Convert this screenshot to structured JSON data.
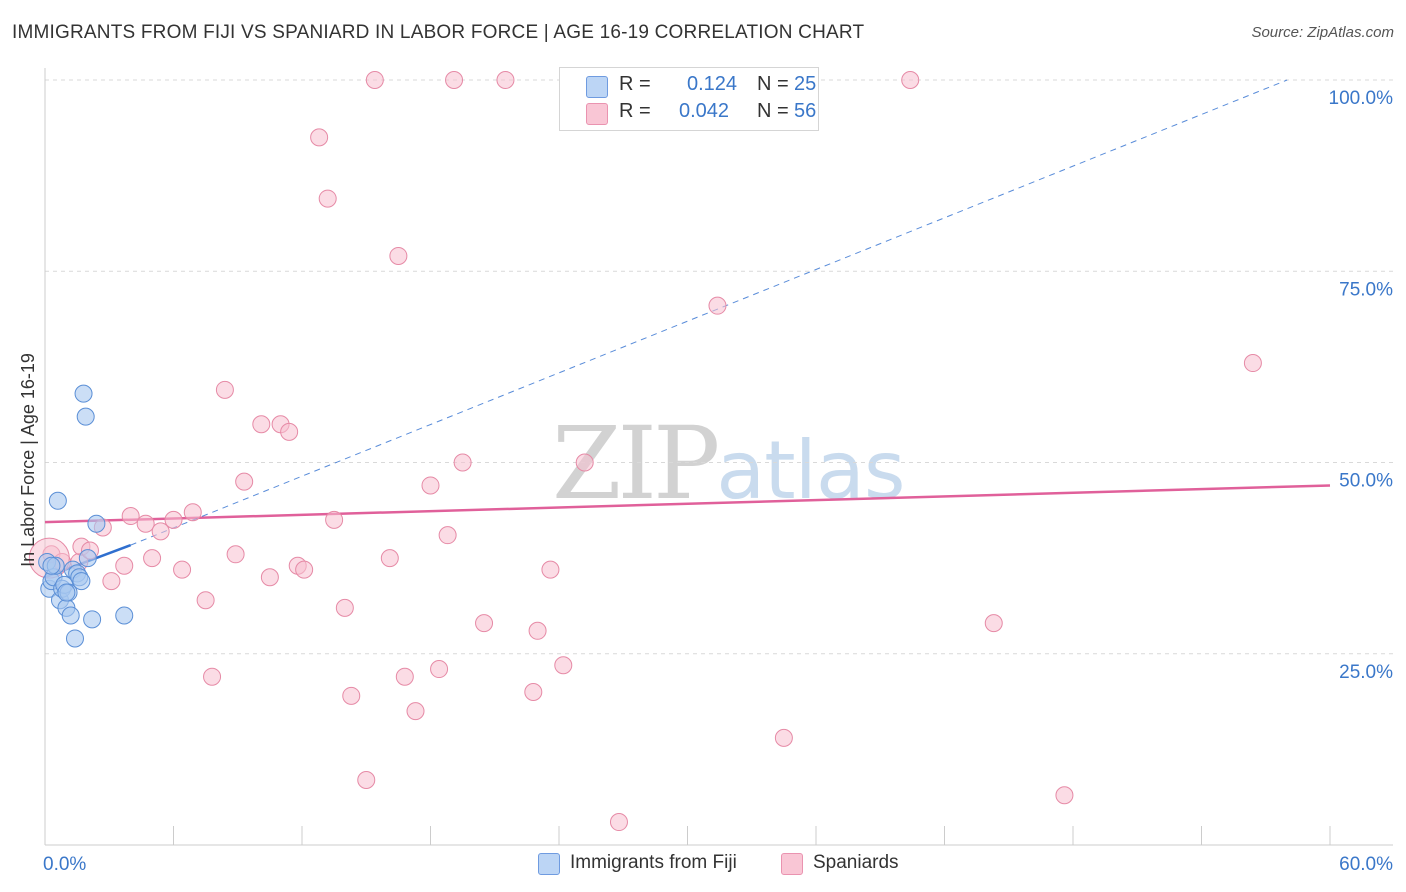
{
  "title": "IMMIGRANTS FROM FIJI VS SPANIARD IN LABOR FORCE | AGE 16-19 CORRELATION CHART",
  "source": "Source: ZipAtlas.com",
  "watermark": {
    "zip": "ZIP",
    "atlas": "atlas"
  },
  "colors": {
    "fiji_fill": "#a9c8f0",
    "fiji_stroke": "#5b8fd6",
    "fiji_line": "#2f6fcf",
    "spaniard_fill": "#f7bfd0",
    "spaniard_stroke": "#e68aa6",
    "spaniard_line": "#e0609a",
    "axis_label": "#3a77c9",
    "grid": "#d9d9d9"
  },
  "legend": {
    "rows": [
      {
        "r_label": "R =",
        "r_value": "0.124",
        "n_label": "N =",
        "n_value": "25"
      },
      {
        "r_label": "R =",
        "r_value": "0.042",
        "n_label": "N =",
        "n_value": "56"
      }
    ]
  },
  "chart_data": {
    "type": "scatter",
    "title": "IMMIGRANTS FROM FIJI VS SPANIARD IN LABOR FORCE | AGE 16-19 CORRELATION CHART",
    "xlabel": "",
    "ylabel": "In Labor Force | Age 16-19",
    "xlim": [
      0,
      60
    ],
    "ylim": [
      0,
      100
    ],
    "x_tick_labels": [
      "0.0%",
      "60.0%"
    ],
    "y_tick_labels": [
      {
        "value": 25,
        "label": "25.0%"
      },
      {
        "value": 50,
        "label": "50.0%"
      },
      {
        "value": 75,
        "label": "75.0%"
      },
      {
        "value": 100,
        "label": "100.0%"
      }
    ],
    "grid": true,
    "legend_position": "top-center",
    "series": [
      {
        "name": "Immigrants from Fiji",
        "r": 0.124,
        "n": 25,
        "points": [
          [
            0.1,
            37
          ],
          [
            0.2,
            33.5
          ],
          [
            0.3,
            34.5
          ],
          [
            0.4,
            35
          ],
          [
            0.5,
            36.5
          ],
          [
            0.6,
            45
          ],
          [
            0.7,
            32
          ],
          [
            0.8,
            33.5
          ],
          [
            0.9,
            34
          ],
          [
            1.0,
            31
          ],
          [
            1.1,
            33
          ],
          [
            1.2,
            30
          ],
          [
            1.3,
            36
          ],
          [
            1.4,
            27
          ],
          [
            1.5,
            35.5
          ],
          [
            1.6,
            35
          ],
          [
            1.7,
            34.5
          ],
          [
            1.8,
            59
          ],
          [
            1.9,
            56
          ],
          [
            2.0,
            37.5
          ],
          [
            2.2,
            29.5
          ],
          [
            2.4,
            42
          ],
          [
            3.7,
            30
          ],
          [
            0.3,
            36.5
          ],
          [
            1.0,
            33
          ]
        ],
        "trend_solid": [
          [
            0,
            35
          ],
          [
            4,
            39.2
          ]
        ],
        "trend_dashed": [
          [
            4,
            39.2
          ],
          [
            58,
            100
          ]
        ]
      },
      {
        "name": "Spaniards",
        "r": 0.042,
        "n": 56,
        "points": [
          [
            0.3,
            38
          ],
          [
            0.8,
            37
          ],
          [
            1.6,
            37
          ],
          [
            1.7,
            39
          ],
          [
            2.1,
            38.5
          ],
          [
            2.7,
            41.5
          ],
          [
            3.1,
            34.5
          ],
          [
            3.7,
            36.5
          ],
          [
            4.0,
            43
          ],
          [
            4.7,
            42
          ],
          [
            5.0,
            37.5
          ],
          [
            5.4,
            41
          ],
          [
            6.0,
            42.5
          ],
          [
            6.4,
            36
          ],
          [
            6.9,
            43.5
          ],
          [
            7.5,
            32
          ],
          [
            7.8,
            22
          ],
          [
            8.4,
            59.5
          ],
          [
            8.9,
            38
          ],
          [
            9.3,
            47.5
          ],
          [
            10.1,
            55
          ],
          [
            10.5,
            35
          ],
          [
            11.0,
            55
          ],
          [
            11.4,
            54
          ],
          [
            11.8,
            36.5
          ],
          [
            12.1,
            36
          ],
          [
            12.8,
            92.5
          ],
          [
            13.2,
            84.5
          ],
          [
            13.5,
            42.5
          ],
          [
            14.0,
            31
          ],
          [
            14.3,
            19.5
          ],
          [
            15.0,
            8.5
          ],
          [
            15.4,
            100
          ],
          [
            16.1,
            37.5
          ],
          [
            16.5,
            77
          ],
          [
            16.8,
            22
          ],
          [
            17.3,
            17.5
          ],
          [
            18.0,
            47
          ],
          [
            18.4,
            23
          ],
          [
            18.8,
            40.5
          ],
          [
            19.1,
            100
          ],
          [
            19.5,
            50
          ],
          [
            20.5,
            29
          ],
          [
            21.5,
            100
          ],
          [
            22.8,
            20
          ],
          [
            23.0,
            28
          ],
          [
            23.6,
            36
          ],
          [
            24.2,
            23.5
          ],
          [
            25.2,
            50
          ],
          [
            26.8,
            3
          ],
          [
            31.4,
            70.5
          ],
          [
            34.5,
            14
          ],
          [
            40.4,
            100
          ],
          [
            44.3,
            29
          ],
          [
            47.6,
            6.5
          ],
          [
            56.4,
            63
          ]
        ],
        "trend_solid": [
          [
            0,
            42.2
          ],
          [
            60,
            47
          ]
        ]
      }
    ]
  },
  "bottom_legend": {
    "items": [
      {
        "label": "Immigrants from Fiji"
      },
      {
        "label": "Spaniards"
      }
    ]
  }
}
